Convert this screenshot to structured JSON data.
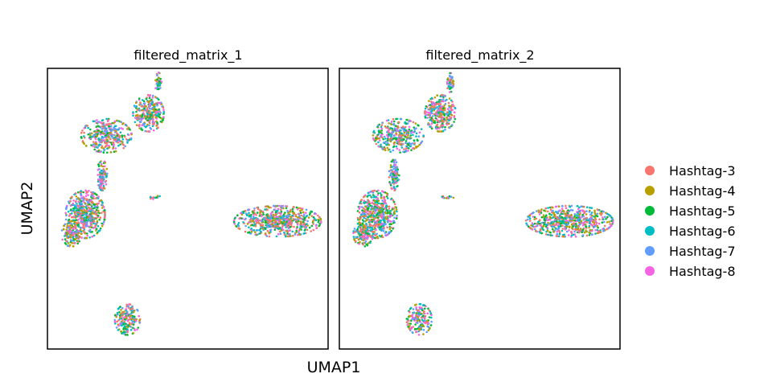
{
  "chart_data": {
    "type": "scatter",
    "xlabel": "UMAP1",
    "ylabel": "UMAP2",
    "grid": false,
    "legend_position": "right",
    "xlim": [
      0,
      10
    ],
    "ylim": [
      0,
      10
    ],
    "series": [
      {
        "name": "Hashtag-3",
        "color": "#F8766D"
      },
      {
        "name": "Hashtag-4",
        "color": "#B79F00"
      },
      {
        "name": "Hashtag-5",
        "color": "#00BA38"
      },
      {
        "name": "Hashtag-6",
        "color": "#00BFC4"
      },
      {
        "name": "Hashtag-7",
        "color": "#619CFF"
      },
      {
        "name": "Hashtag-8",
        "color": "#F564E3"
      }
    ],
    "panels": [
      {
        "title": "filtered_matrix_1",
        "clusters": [
          {
            "cx": 3.95,
            "cy": 9.5,
            "rx": 0.12,
            "ry": 0.35,
            "n": 50
          },
          {
            "cx": 3.6,
            "cy": 8.4,
            "rx": 0.55,
            "ry": 0.65,
            "n": 300
          },
          {
            "cx": 2.1,
            "cy": 7.6,
            "rx": 0.9,
            "ry": 0.6,
            "n": 350
          },
          {
            "cx": 1.95,
            "cy": 6.2,
            "rx": 0.18,
            "ry": 0.55,
            "n": 110
          },
          {
            "cx": 1.35,
            "cy": 4.8,
            "rx": 0.7,
            "ry": 0.85,
            "n": 500
          },
          {
            "cx": 0.85,
            "cy": 4.1,
            "rx": 0.35,
            "ry": 0.45,
            "n": 140
          },
          {
            "cx": 3.85,
            "cy": 5.4,
            "rx": 0.25,
            "ry": 0.06,
            "n": 14
          },
          {
            "cx": 8.2,
            "cy": 4.55,
            "rx": 1.55,
            "ry": 0.55,
            "n": 650
          },
          {
            "cx": 2.85,
            "cy": 1.05,
            "rx": 0.45,
            "ry": 0.55,
            "n": 180
          }
        ]
      },
      {
        "title": "filtered_matrix_2",
        "clusters": [
          {
            "cx": 3.95,
            "cy": 9.5,
            "rx": 0.12,
            "ry": 0.35,
            "n": 50
          },
          {
            "cx": 3.6,
            "cy": 8.4,
            "rx": 0.55,
            "ry": 0.65,
            "n": 300
          },
          {
            "cx": 2.1,
            "cy": 7.6,
            "rx": 0.9,
            "ry": 0.6,
            "n": 350
          },
          {
            "cx": 1.95,
            "cy": 6.2,
            "rx": 0.18,
            "ry": 0.55,
            "n": 110
          },
          {
            "cx": 1.35,
            "cy": 4.8,
            "rx": 0.7,
            "ry": 0.85,
            "n": 500
          },
          {
            "cx": 0.85,
            "cy": 4.1,
            "rx": 0.35,
            "ry": 0.45,
            "n": 140
          },
          {
            "cx": 3.85,
            "cy": 5.4,
            "rx": 0.25,
            "ry": 0.06,
            "n": 14
          },
          {
            "cx": 8.2,
            "cy": 4.55,
            "rx": 1.55,
            "ry": 0.55,
            "n": 650
          },
          {
            "cx": 2.85,
            "cy": 1.05,
            "rx": 0.45,
            "ry": 0.55,
            "n": 180
          }
        ]
      }
    ]
  }
}
